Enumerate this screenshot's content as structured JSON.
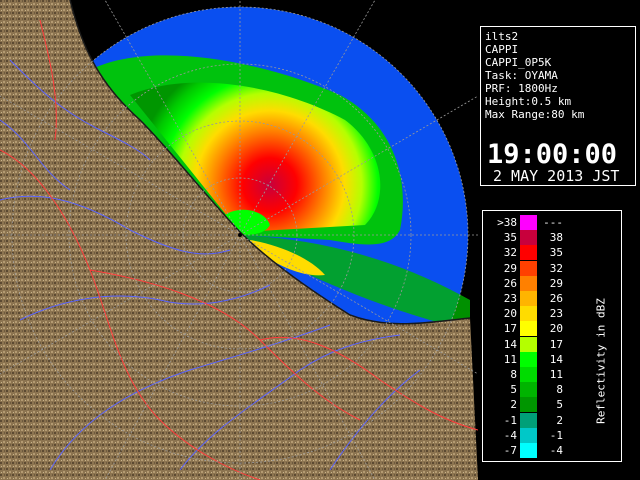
{
  "info_panel": {
    "lines": [
      "ilts2",
      "CAPPI",
      "CAPPI_0P5K",
      "Task: OYAMA",
      "PRF: 1800Hz",
      "Height:0.5 km",
      "Max Range:80 km"
    ],
    "time": "19:00:00",
    "date": "2 MAY 2013 JST"
  },
  "legend": {
    "unit_label": "Reflectivity in dBZ",
    "bins": [
      {
        "low": ">38",
        "high": "---",
        "color": "#ff00ff"
      },
      {
        "low": "35",
        "high": "38",
        "color": "#c8003c"
      },
      {
        "low": "32",
        "high": "35",
        "color": "#ff0000"
      },
      {
        "low": "29",
        "high": "32",
        "color": "#ff4000"
      },
      {
        "low": "26",
        "high": "29",
        "color": "#ff8000"
      },
      {
        "low": "23",
        "high": "26",
        "color": "#ffb400"
      },
      {
        "low": "20",
        "high": "23",
        "color": "#ffdc00"
      },
      {
        "low": "17",
        "high": "20",
        "color": "#ffff00"
      },
      {
        "low": "14",
        "high": "17",
        "color": "#b4ff00"
      },
      {
        "low": "11",
        "high": "14",
        "color": "#00ff00"
      },
      {
        "low": "8",
        "high": "11",
        "color": "#00dc00"
      },
      {
        "low": "5",
        "high": "8",
        "color": "#00b400"
      },
      {
        "low": "2",
        "high": "5",
        "color": "#009600"
      },
      {
        "low": "-1",
        "high": "2",
        "color": "#00a078"
      },
      {
        "low": "-4",
        "high": "-1",
        "color": "#00c8c8"
      },
      {
        "low": "-7",
        "high": "-4",
        "color": "#00ffff"
      }
    ]
  },
  "map": {
    "max_range_km": 80,
    "range_ring_spacing_km": 20,
    "coverage_color": "#0a4ff0",
    "land_color": "#8c7450",
    "river_color": "#5a64ff",
    "boundary_color": "#ff3c3c"
  }
}
